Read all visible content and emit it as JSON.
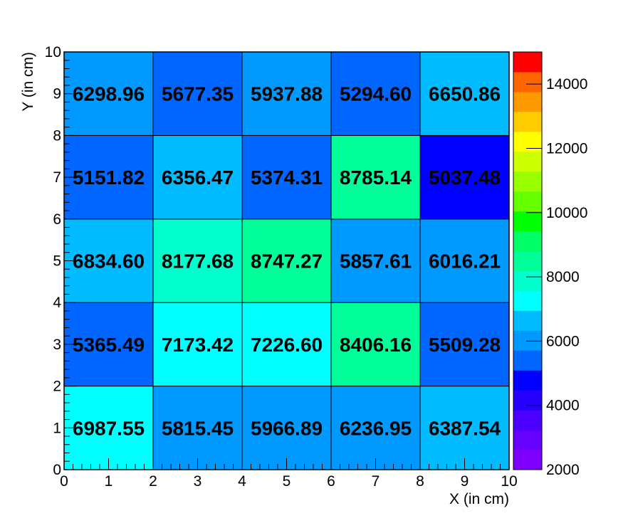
{
  "chart_data": {
    "type": "heatmap",
    "title": "",
    "xlabel": "X (in cm)",
    "ylabel": "Y (in cm)",
    "xlim": [
      0,
      10
    ],
    "ylim": [
      0,
      10
    ],
    "x_ticks": [
      "0",
      "1",
      "2",
      "3",
      "4",
      "5",
      "6",
      "7",
      "8",
      "9",
      "10"
    ],
    "y_ticks": [
      "0",
      "1",
      "2",
      "3",
      "4",
      "5",
      "6",
      "7",
      "8",
      "9",
      "10"
    ],
    "x_bin_edges": [
      0,
      2,
      4,
      6,
      8,
      10
    ],
    "y_bin_edges": [
      0,
      2,
      4,
      6,
      8,
      10
    ],
    "values": [
      [
        6987.55,
        5815.45,
        5966.89,
        6236.95,
        6387.54
      ],
      [
        5365.49,
        7173.42,
        7226.6,
        8406.16,
        5509.28
      ],
      [
        6834.6,
        8177.68,
        8747.27,
        5857.61,
        6016.21
      ],
      [
        5151.82,
        6356.47,
        5374.31,
        8785.14,
        5037.48
      ],
      [
        6298.96,
        5677.35,
        5937.88,
        5294.6,
        6650.86
      ]
    ],
    "value_labels": [
      [
        "6987.55",
        "5815.45",
        "5966.89",
        "6236.95",
        "6387.54"
      ],
      [
        "5365.49",
        "7173.42",
        "7226.60",
        "8406.16",
        "5509.28"
      ],
      [
        "6834.60",
        "8177.68",
        "8747.27",
        "5857.61",
        "6016.21"
      ],
      [
        "5151.82",
        "6356.47",
        "5374.31",
        "8785.14",
        "5037.48"
      ],
      [
        "6298.96",
        "5677.35",
        "5937.88",
        "5294.60",
        "6650.86"
      ]
    ],
    "colorbar": {
      "range": [
        2000,
        15000
      ],
      "tick_values": [
        2000,
        4000,
        6000,
        8000,
        10000,
        12000,
        14000
      ],
      "tick_labels": [
        "2000",
        "4000",
        "6000",
        "8000",
        "10000",
        "12000",
        "14000"
      ],
      "levels": 20,
      "colors": [
        "#7f00ff",
        "#6600ff",
        "#4c00ff",
        "#2600ff",
        "#0000ff",
        "#0066ff",
        "#0099ff",
        "#00bbff",
        "#00ffff",
        "#00ffcc",
        "#00ff99",
        "#00ff66",
        "#00ff00",
        "#66ff00",
        "#99ff00",
        "#ccff00",
        "#ffff00",
        "#ffcc00",
        "#ff9900",
        "#ff6600",
        "#ff0000"
      ]
    },
    "grid": false
  }
}
